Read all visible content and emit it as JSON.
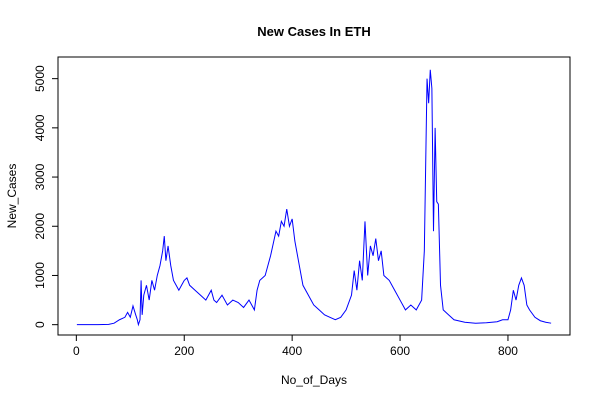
{
  "chart_data": {
    "type": "line",
    "title": "New Cases In ETH",
    "x_label": "No_of_Days",
    "y_label": "New_Cases",
    "x": [
      1,
      20,
      40,
      60,
      70,
      80,
      90,
      95,
      100,
      105,
      110,
      113,
      115,
      118,
      120,
      122,
      125,
      130,
      135,
      140,
      145,
      150,
      155,
      160,
      163,
      166,
      170,
      175,
      180,
      185,
      190,
      195,
      200,
      205,
      210,
      220,
      230,
      240,
      250,
      255,
      260,
      270,
      280,
      290,
      300,
      310,
      320,
      330,
      335,
      340,
      350,
      360,
      370,
      375,
      380,
      385,
      390,
      395,
      400,
      405,
      410,
      420,
      430,
      440,
      450,
      460,
      470,
      480,
      490,
      500,
      510,
      515,
      520,
      525,
      530,
      535,
      540,
      545,
      550,
      555,
      560,
      565,
      570,
      580,
      590,
      600,
      610,
      620,
      630,
      640,
      645,
      650,
      653,
      656,
      659,
      662,
      665,
      668,
      671,
      675,
      680,
      690,
      700,
      720,
      740,
      760,
      780,
      790,
      800,
      805,
      810,
      815,
      820,
      825,
      830,
      835,
      840,
      850,
      860,
      870,
      880
    ],
    "series": [
      {
        "name": "New_Cases",
        "color": "#0000ff",
        "values": [
          0,
          0,
          2,
          5,
          30,
          100,
          150,
          250,
          150,
          380,
          200,
          100,
          0,
          100,
          900,
          200,
          600,
          800,
          500,
          900,
          700,
          1000,
          1200,
          1500,
          1800,
          1300,
          1600,
          1200,
          900,
          800,
          700,
          800,
          900,
          950,
          800,
          700,
          600,
          500,
          700,
          500,
          450,
          600,
          400,
          500,
          450,
          350,
          500,
          300,
          700,
          900,
          1000,
          1400,
          1900,
          1800,
          2100,
          2000,
          2350,
          2000,
          2150,
          1700,
          1400,
          800,
          600,
          400,
          300,
          200,
          150,
          100,
          150,
          300,
          600,
          1100,
          700,
          1300,
          900,
          2100,
          1000,
          1600,
          1400,
          1750,
          1300,
          1500,
          1000,
          900,
          700,
          500,
          300,
          400,
          300,
          500,
          1500,
          5000,
          4500,
          5180,
          4800,
          1900,
          4000,
          2500,
          2450,
          800,
          300,
          200,
          100,
          50,
          30,
          40,
          60,
          100,
          100,
          300,
          700,
          500,
          800,
          950,
          800,
          400,
          300,
          150,
          80,
          50,
          30
        ]
      }
    ],
    "xlim": [
      -34,
      915
    ],
    "ylim": [
      -210,
      5440
    ],
    "xticks": [
      0,
      200,
      400,
      600,
      800
    ],
    "yticks": [
      0,
      1000,
      2000,
      3000,
      4000,
      5000
    ]
  }
}
